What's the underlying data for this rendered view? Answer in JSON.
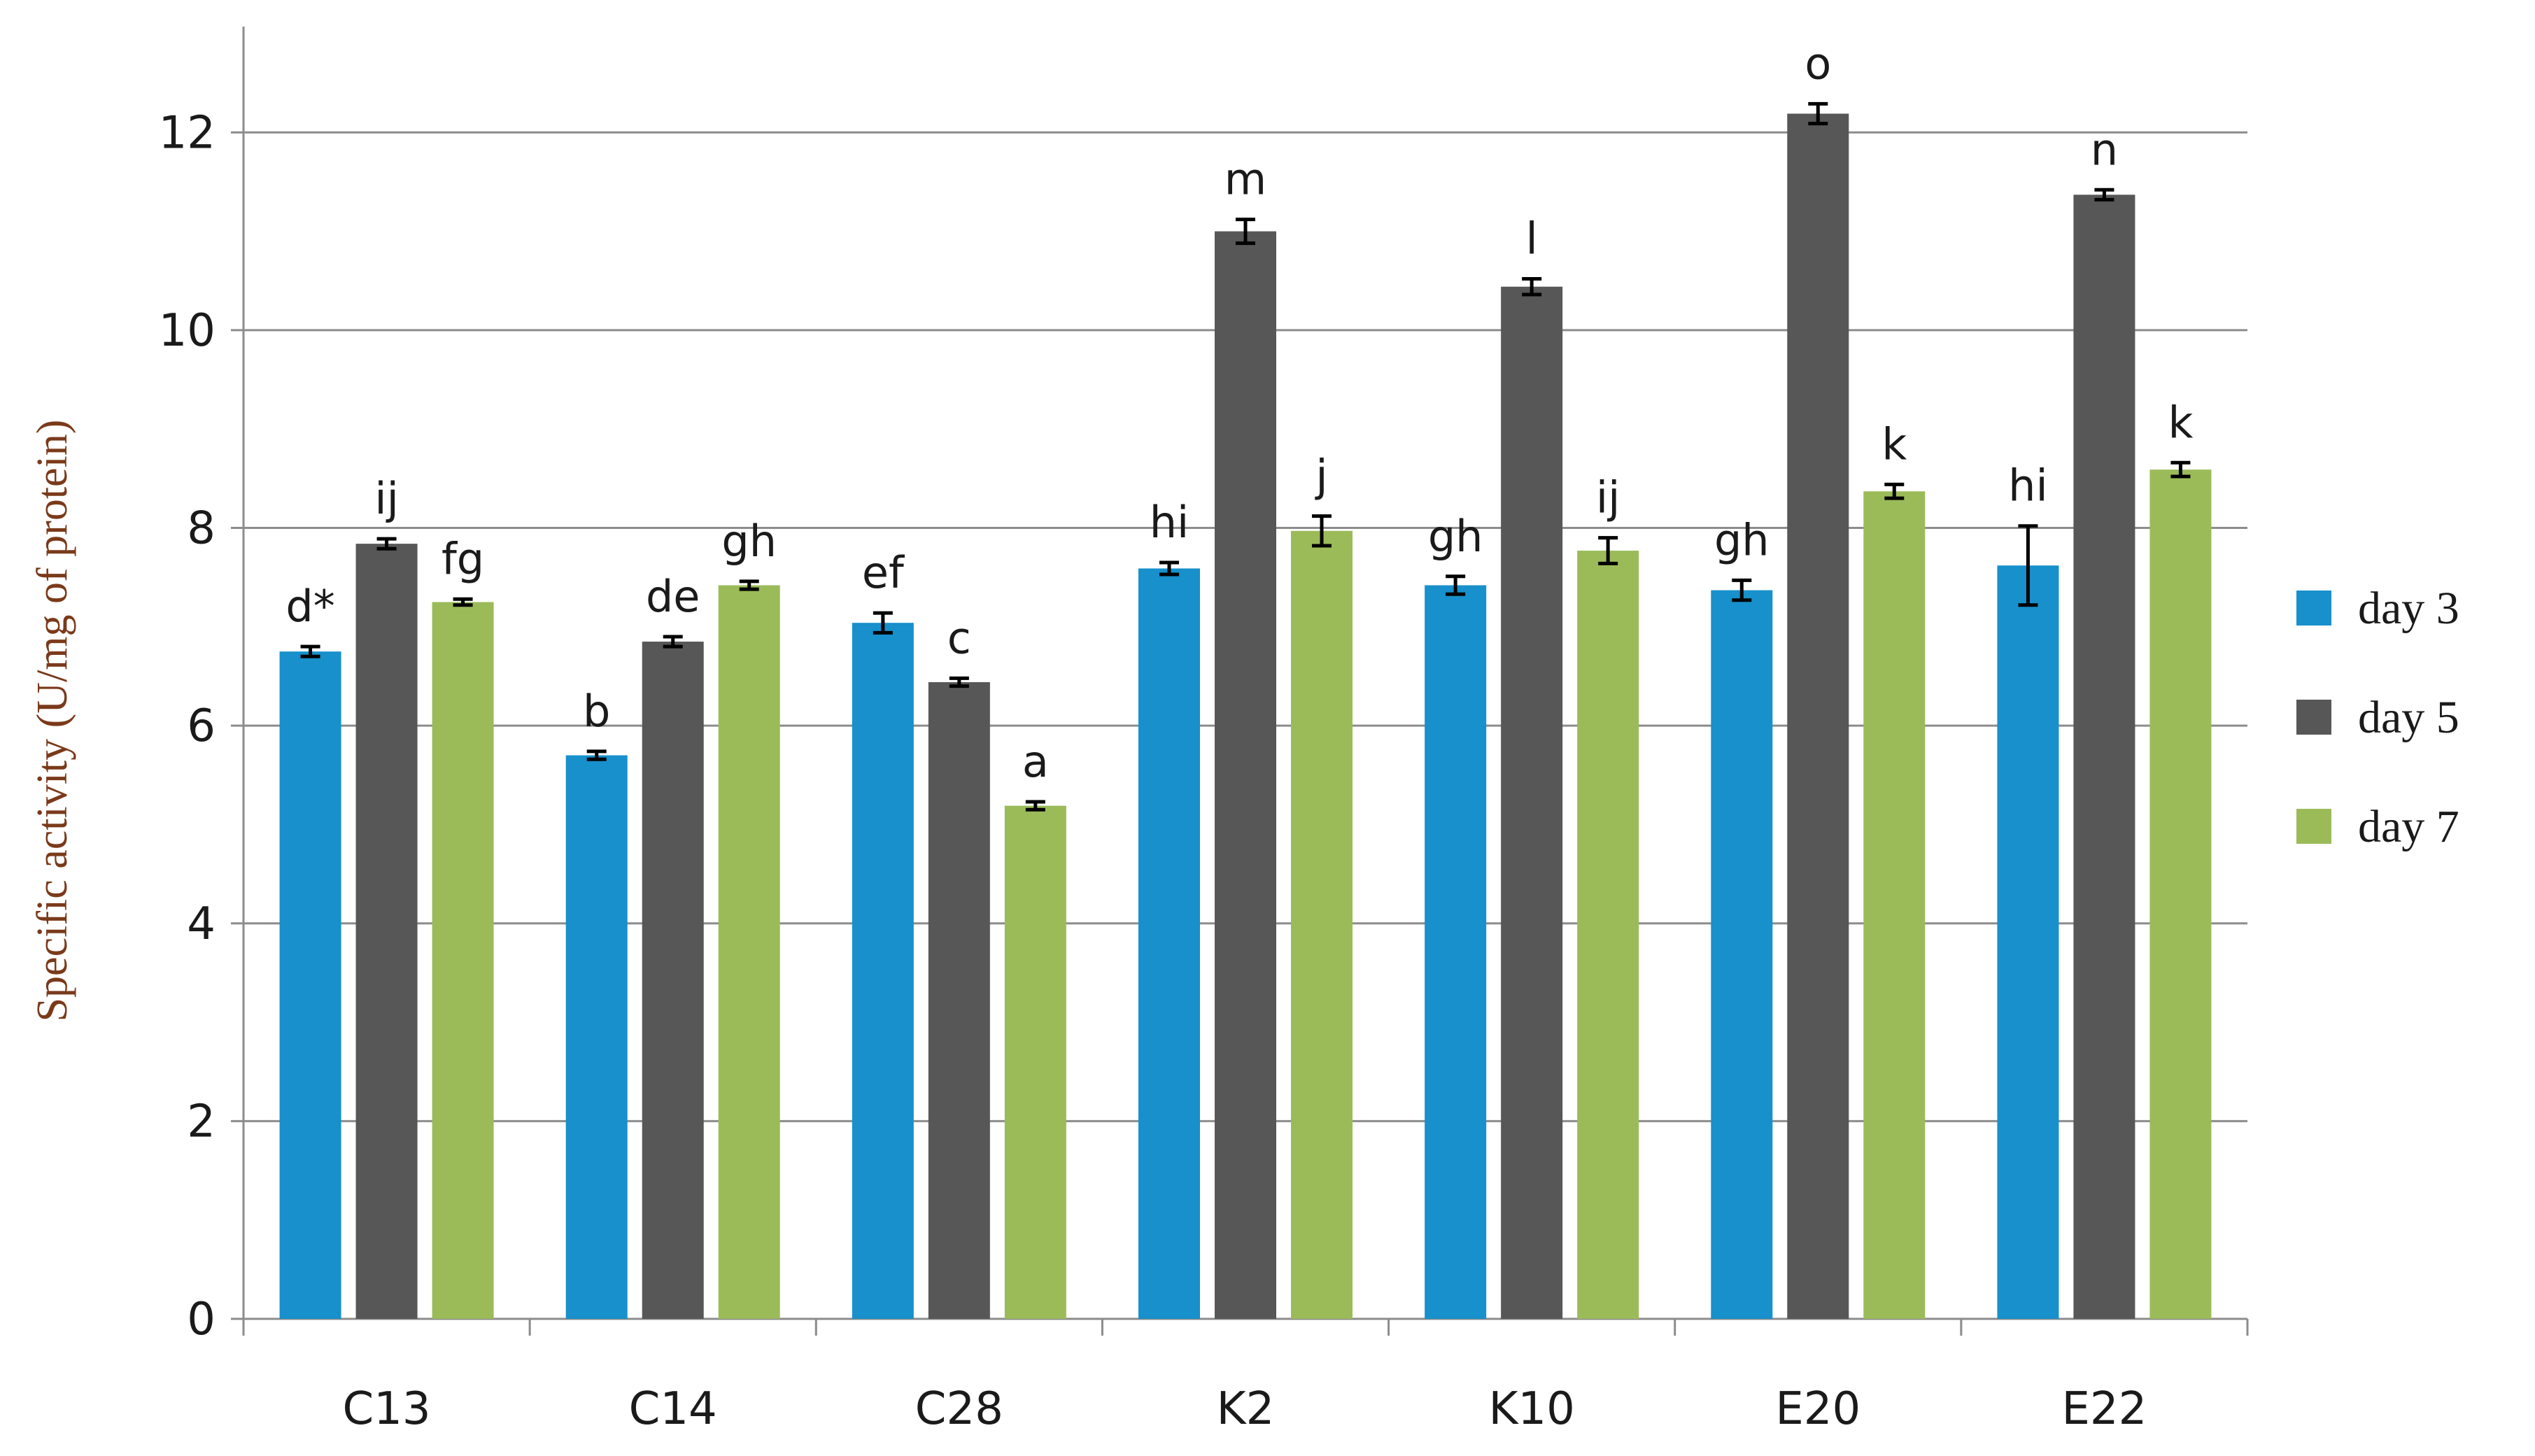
{
  "chart_data": {
    "type": "bar",
    "title": "",
    "xlabel": "",
    "ylabel": "Specific activity (U/mg of protein)",
    "ylim": [
      0,
      13
    ],
    "yticks": [
      0,
      2,
      4,
      6,
      8,
      10,
      12
    ],
    "grid": true,
    "legend_position": "right",
    "categories": [
      "C13",
      "C14",
      "C28",
      "K2",
      "K10",
      "E20",
      "E22"
    ],
    "series": [
      {
        "name": "day 3",
        "color": "#1790cc",
        "values": [
          6.75,
          5.7,
          7.04,
          7.59,
          7.42,
          7.37,
          7.62
        ],
        "errors": [
          0.05,
          0.04,
          0.1,
          0.06,
          0.09,
          0.1,
          0.4
        ],
        "labels": [
          "d*",
          "b",
          "ef",
          "hi",
          "gh",
          "gh",
          "hi"
        ]
      },
      {
        "name": "day 5",
        "color": "#575757",
        "values": [
          7.84,
          6.85,
          6.44,
          11.0,
          10.44,
          12.19,
          11.37
        ],
        "errors": [
          0.05,
          0.05,
          0.04,
          0.12,
          0.08,
          0.1,
          0.05
        ],
        "labels": [
          "ij",
          "de",
          "c",
          "m",
          "l",
          "o",
          "n"
        ]
      },
      {
        "name": "day 7",
        "color": "#9bbb59",
        "values": [
          7.25,
          7.42,
          5.19,
          7.97,
          7.77,
          8.37,
          8.59
        ],
        "errors": [
          0.03,
          0.04,
          0.04,
          0.15,
          0.13,
          0.07,
          0.07
        ],
        "labels": [
          "fg",
          "gh",
          "a",
          "j",
          "ij",
          "k",
          "k"
        ]
      }
    ]
  }
}
